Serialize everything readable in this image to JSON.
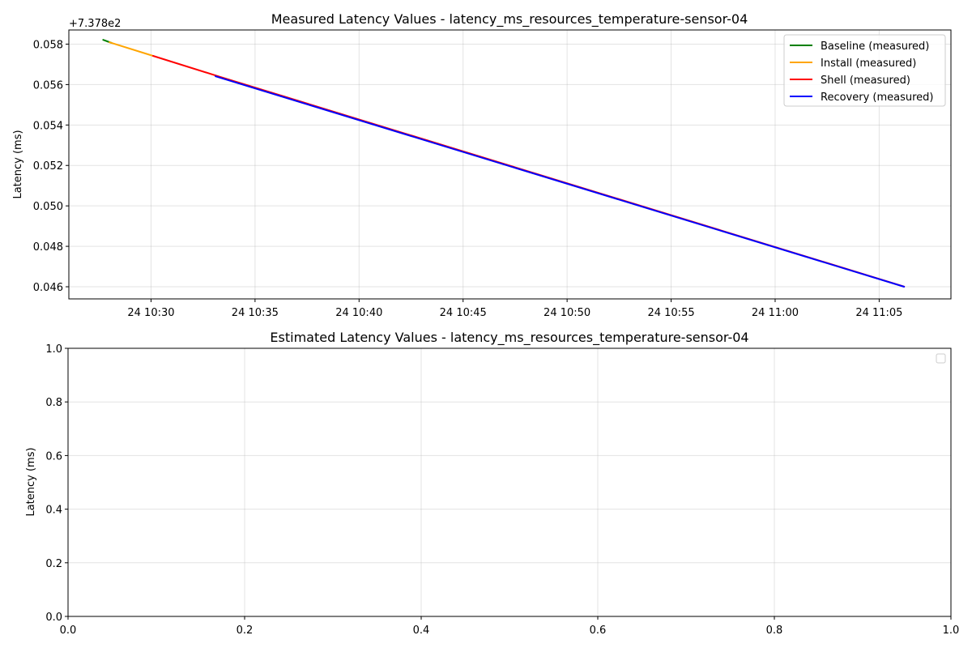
{
  "chart_data": [
    {
      "type": "line",
      "title": "Measured Latency Values - latency_ms_resources_temperature-sensor-04",
      "xlabel": "",
      "ylabel": "Latency (ms)",
      "y_offset_label": "+7.378e2",
      "x_tick_labels": [
        "24 10:30",
        "24 10:35",
        "24 10:40",
        "24 10:45",
        "24 10:50",
        "24 10:55",
        "24 11:00",
        "24 11:05"
      ],
      "x_tick_minutes": [
        30,
        35,
        40,
        45,
        50,
        55,
        60,
        65
      ],
      "xlim_minutes": [
        26.05,
        68.45
      ],
      "y_tick_labels": [
        "0.046",
        "0.048",
        "0.050",
        "0.052",
        "0.054",
        "0.056",
        "0.058"
      ],
      "y_tick_values": [
        0.046,
        0.048,
        0.05,
        0.052,
        0.054,
        0.056,
        0.058
      ],
      "ylim": [
        0.0454,
        0.0587
      ],
      "grid": true,
      "legend_position": "upper right",
      "series": [
        {
          "name": "Baseline (measured)",
          "color": "#008000",
          "x_minutes": [
            27.7,
            28.1
          ],
          "values": [
            0.05821,
            0.05806
          ]
        },
        {
          "name": "Install (measured)",
          "color": "#ffa500",
          "x_minutes": [
            28.0,
            30.1
          ],
          "values": [
            0.05809,
            0.05742
          ]
        },
        {
          "name": "Shell (measured)",
          "color": "#ff0000",
          "x_minutes": [
            30.1,
            33.2
          ],
          "values": [
            0.05742,
            0.05642
          ]
        },
        {
          "name": "Recovery (measured)",
          "color": "#0000ff",
          "x_minutes": [
            33.1,
            66.2
          ],
          "values": [
            0.05641,
            0.046
          ]
        }
      ],
      "overlay_series": [
        {
          "color": "#ff0000",
          "x_minutes": [
            33.2,
            66.2
          ],
          "values": [
            0.05642,
            0.04601
          ]
        }
      ]
    },
    {
      "type": "line",
      "title": "Estimated Latency Values - latency_ms_resources_temperature-sensor-04",
      "xlabel": "",
      "ylabel": "Latency (ms)",
      "x_tick_labels": [
        "0.0",
        "0.2",
        "0.4",
        "0.6",
        "0.8",
        "1.0"
      ],
      "x_tick_values": [
        0,
        0.2,
        0.4,
        0.6,
        0.8,
        1.0
      ],
      "y_tick_labels": [
        "0.0",
        "0.2",
        "0.4",
        "0.6",
        "0.8",
        "1.0"
      ],
      "y_tick_values": [
        0,
        0.2,
        0.4,
        0.6,
        0.8,
        1.0
      ],
      "xlim": [
        0,
        1
      ],
      "ylim": [
        0,
        1
      ],
      "grid": true,
      "legend_position": "upper right",
      "series": []
    }
  ]
}
